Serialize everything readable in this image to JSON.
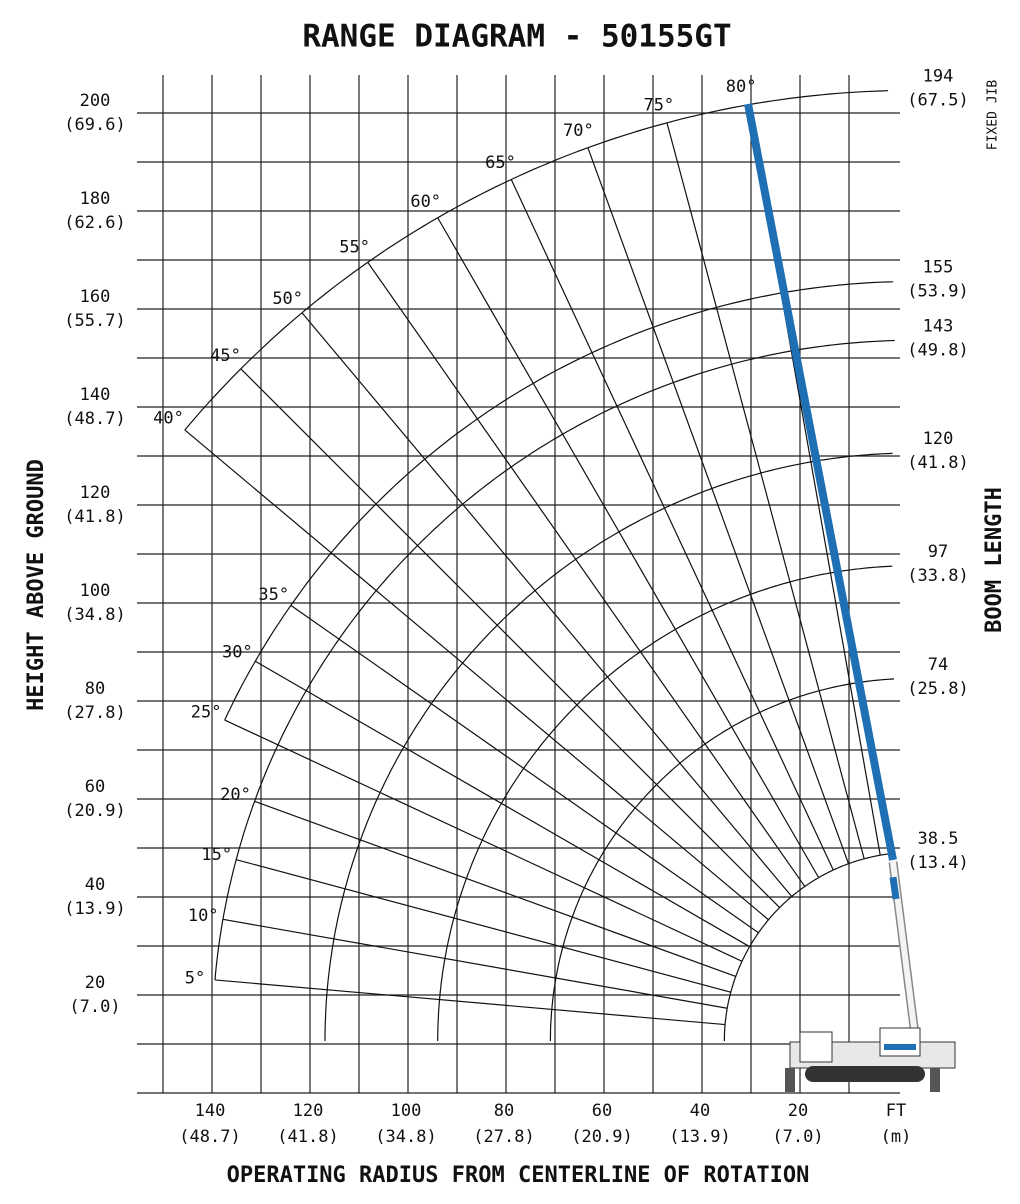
{
  "title": "RANGE DIAGRAM - 50155GT",
  "y_axis": {
    "label": "HEIGHT ABOVE GROUND",
    "ticks": [
      {
        "ft": 200,
        "m": "(69.6)"
      },
      {
        "ft": 180,
        "m": "(62.6)"
      },
      {
        "ft": 160,
        "m": "(55.7)"
      },
      {
        "ft": 140,
        "m": "(48.7)"
      },
      {
        "ft": 120,
        "m": "(41.8)"
      },
      {
        "ft": 100,
        "m": "(34.8)"
      },
      {
        "ft": 80,
        "m": "(27.8)"
      },
      {
        "ft": 60,
        "m": "(20.9)"
      },
      {
        "ft": 40,
        "m": "(13.9)"
      },
      {
        "ft": 20,
        "m": "(7.0)"
      }
    ]
  },
  "x_axis": {
    "label": "OPERATING RADIUS FROM CENTERLINE OF ROTATION",
    "ticks": [
      {
        "ft": 140,
        "m": "(48.7)"
      },
      {
        "ft": 120,
        "m": "(41.8)"
      },
      {
        "ft": 100,
        "m": "(34.8)"
      },
      {
        "ft": 80,
        "m": "(27.8)"
      },
      {
        "ft": 60,
        "m": "(20.9)"
      },
      {
        "ft": 40,
        "m": "(13.9)"
      },
      {
        "ft": 20,
        "m": "(7.0)"
      }
    ],
    "units": {
      "ft": "FT",
      "m": "(m)"
    }
  },
  "boom_length": {
    "label": "BOOM LENGTH",
    "lengths": [
      {
        "ft": 194,
        "m": "(67.5)"
      },
      {
        "ft": 155,
        "m": "(53.9)"
      },
      {
        "ft": 143,
        "m": "(49.8)"
      },
      {
        "ft": 120,
        "m": "(41.8)"
      },
      {
        "ft": 97,
        "m": "(33.8)"
      },
      {
        "ft": 74,
        "m": "(25.8)"
      },
      {
        "ft": 38.5,
        "m": "(13.4)"
      }
    ]
  },
  "jib_label": "FIXED JIB",
  "angles": [
    "5°",
    "10°",
    "15°",
    "20°",
    "25°",
    "30°",
    "35°",
    "40°",
    "45°",
    "50°",
    "55°",
    "60°",
    "65°",
    "70°",
    "75°",
    "80°"
  ]
}
